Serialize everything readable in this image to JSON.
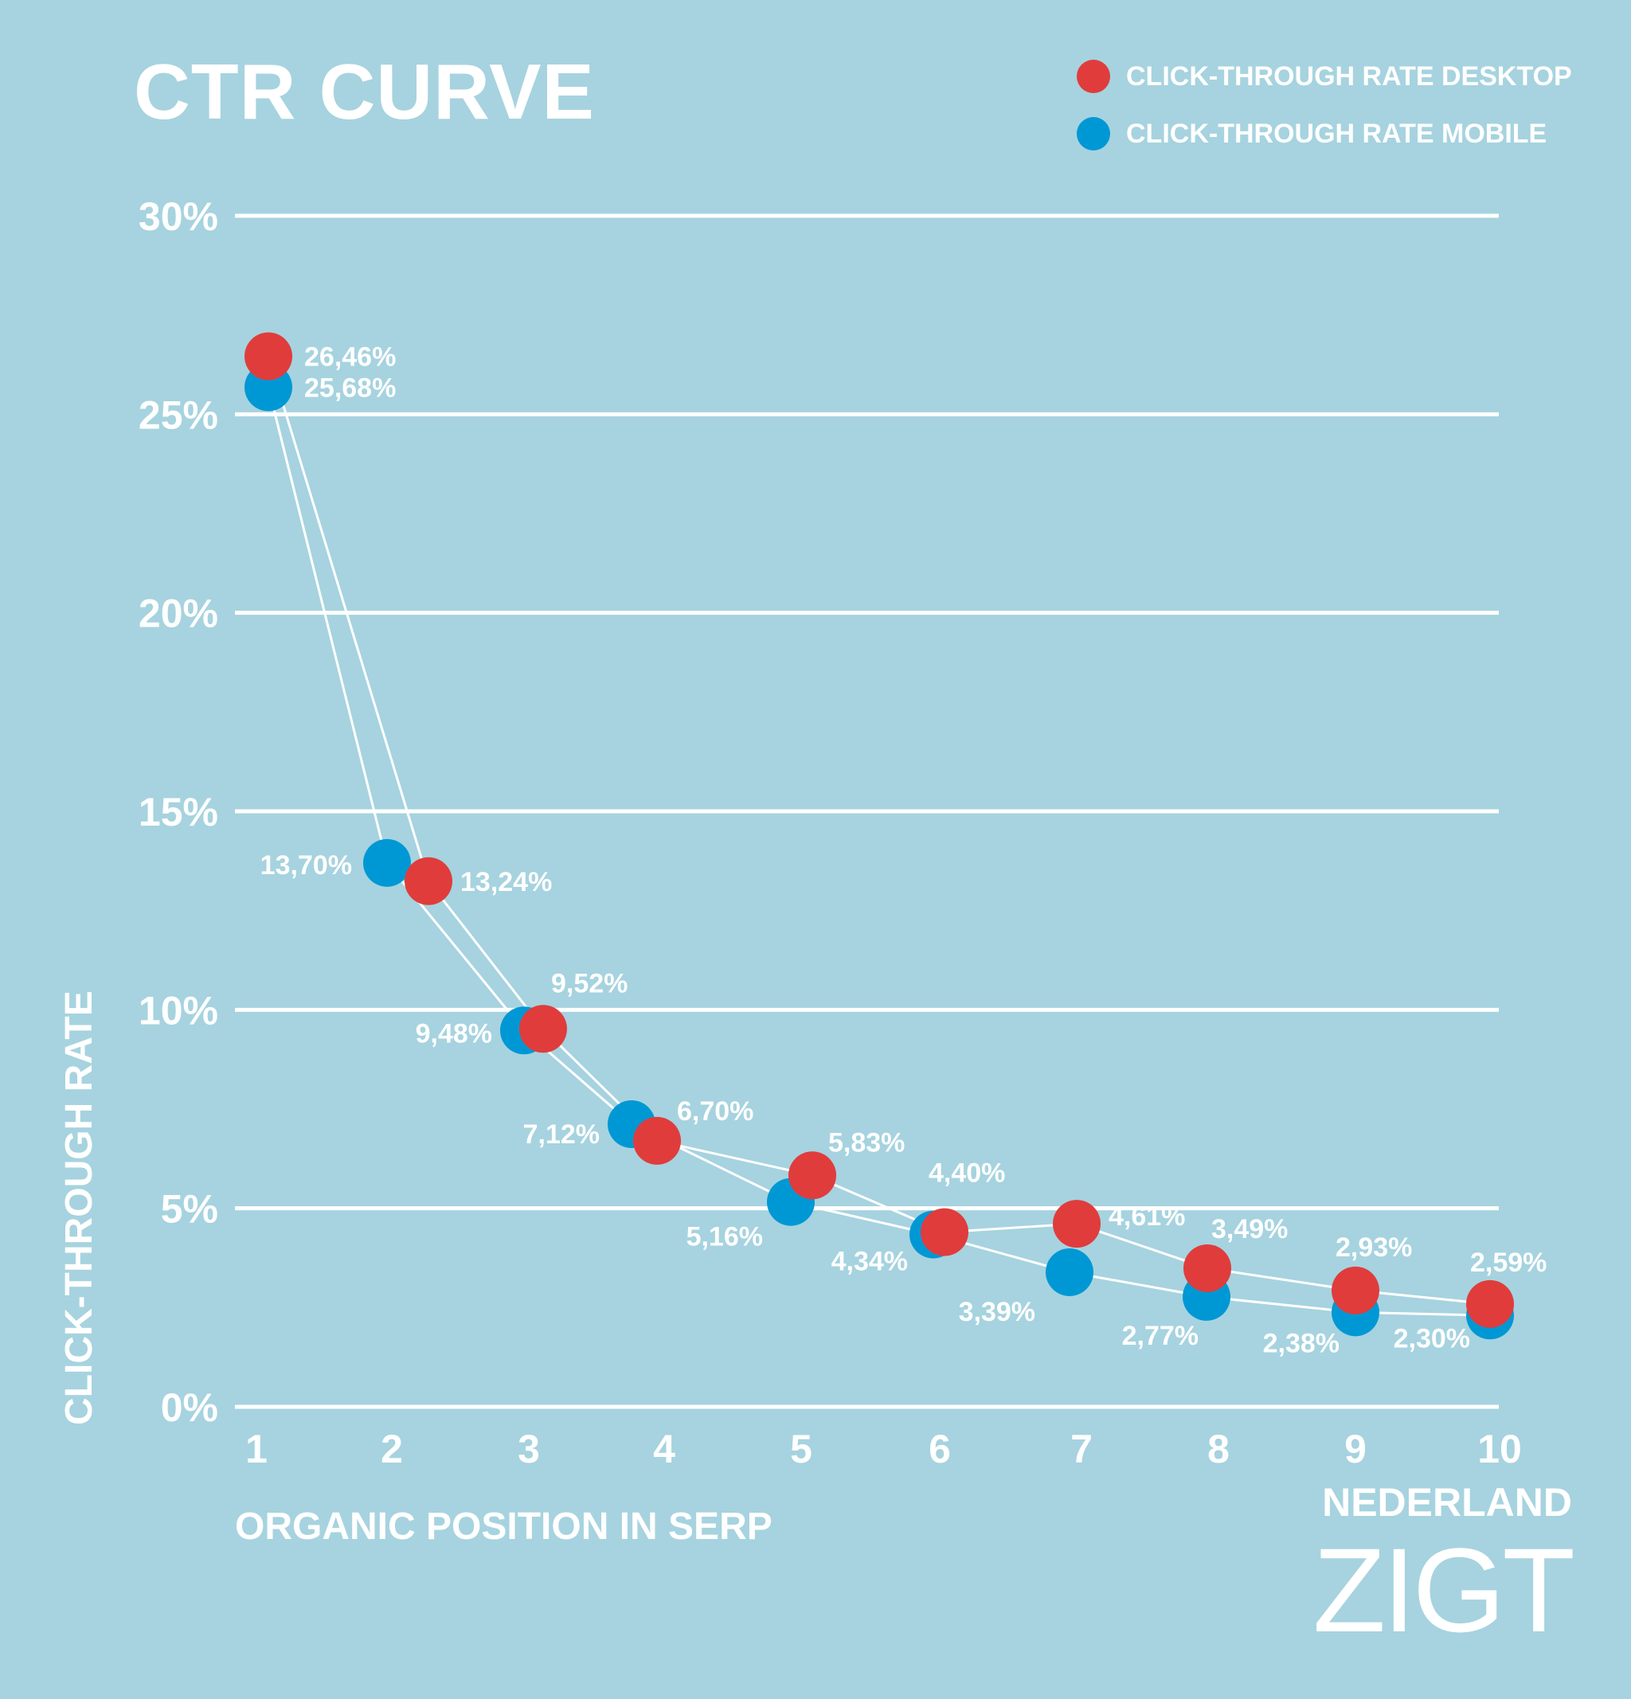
{
  "chart_data": {
    "type": "line",
    "title": "CTR CURVE",
    "xlabel": "ORGANIC POSITION IN SERP",
    "ylabel": "CLICK-THROUGH RATE",
    "ylim": [
      0,
      30
    ],
    "yticks": [
      {
        "value": 0,
        "label": "0%"
      },
      {
        "value": 5,
        "label": "5%"
      },
      {
        "value": 10,
        "label": "10%"
      },
      {
        "value": 15,
        "label": "15%"
      },
      {
        "value": 20,
        "label": "20%"
      },
      {
        "value": 25,
        "label": "25%"
      },
      {
        "value": 30,
        "label": "30%"
      }
    ],
    "categories": [
      "1",
      "2",
      "3",
      "4",
      "5",
      "6",
      "7",
      "8",
      "9",
      "10"
    ],
    "legend_position": "top-right",
    "series": [
      {
        "name": "CLICK-THROUGH RATE DESKTOP",
        "color": "#e03c3c",
        "values": [
          26.46,
          13.24,
          9.52,
          6.7,
          5.83,
          4.4,
          4.61,
          3.49,
          2.93,
          2.59
        ],
        "labels": [
          "26,46%",
          "13,24%",
          "9,52%",
          "6,70%",
          "5,83%",
          "4,40%",
          "4,61%",
          "3,49%",
          "2,93%",
          "2,59%"
        ]
      },
      {
        "name": "CLICK-THROUGH RATE MOBILE",
        "color": "#0098d4",
        "values": [
          25.68,
          13.7,
          9.48,
          7.12,
          5.16,
          4.34,
          3.39,
          2.77,
          2.38,
          2.3
        ],
        "labels": [
          "25,68%",
          "13,70%",
          "9,48%",
          "7,12%",
          "5,16%",
          "4,34%",
          "3,39%",
          "2,77%",
          "2,38%",
          "2,30%"
        ]
      }
    ]
  },
  "brand": {
    "line1": "NEDERLAND",
    "line2": "ZIGT"
  },
  "colors": {
    "background": "#a6d3df",
    "gridline": "#ffffff",
    "text": "#ffffff"
  }
}
